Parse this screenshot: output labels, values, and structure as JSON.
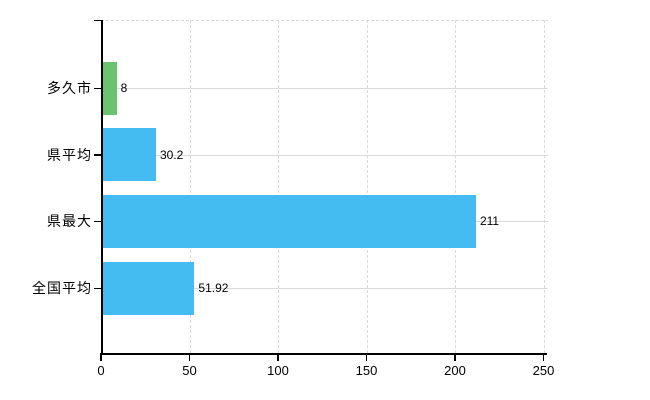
{
  "chart_data": {
    "type": "bar",
    "orientation": "horizontal",
    "title": "",
    "xlabel": "",
    "ylabel": "",
    "categories": [
      "多久市",
      "県平均",
      "県最大",
      "全国平均"
    ],
    "values": [
      8,
      30.2,
      211,
      51.92
    ],
    "value_labels": [
      "8",
      "30.2",
      "211",
      "51.92"
    ],
    "bar_colors": [
      "#6cc26f",
      "#44bcf2",
      "#44bcf2",
      "#44bcf2"
    ],
    "xlim": [
      0,
      250
    ],
    "x_ticks": [
      0,
      50,
      100,
      150,
      200,
      250
    ],
    "x_tick_labels": [
      "0",
      "50",
      "100",
      "150",
      "200",
      "250"
    ],
    "grid": true,
    "legend": false,
    "gridline_style": "dashed-vertical, solid-horizontal-at-category-centers",
    "colors": {
      "background": "#ffffff",
      "axis": "#000000",
      "gridline": "#d9d9d9",
      "text": "#000000"
    }
  }
}
